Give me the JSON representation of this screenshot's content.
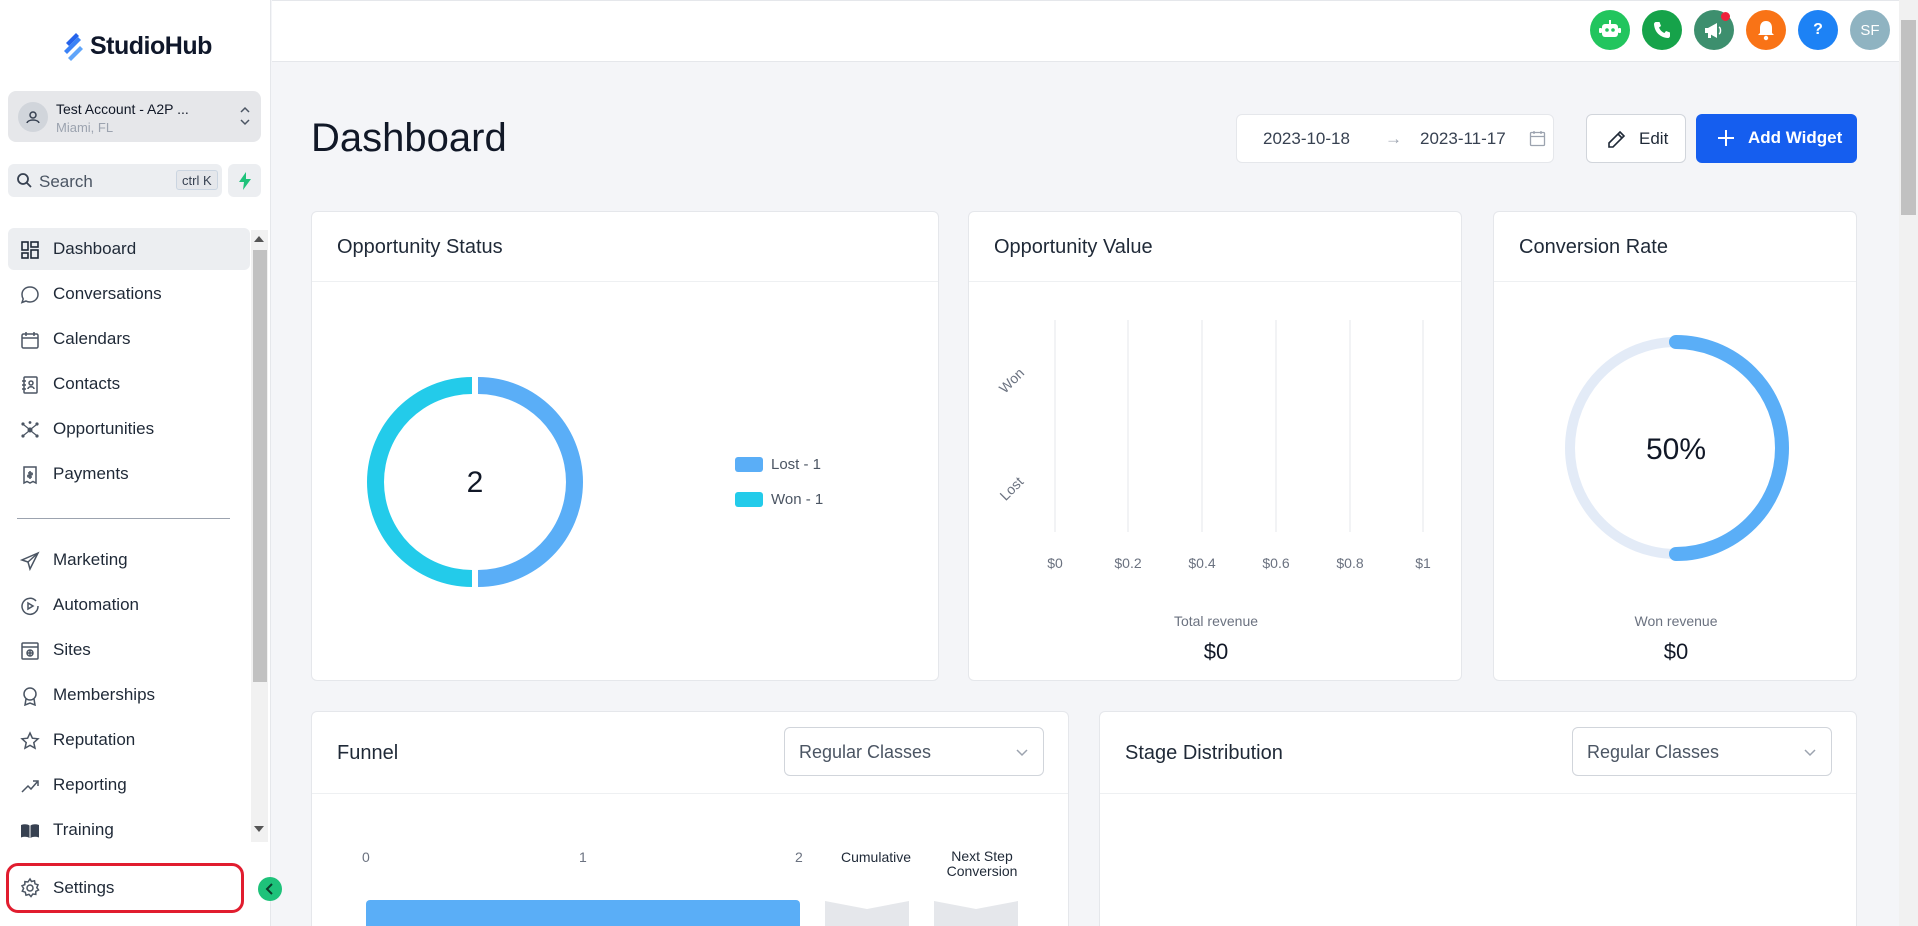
{
  "app": {
    "logo_text": "StudioHub"
  },
  "account": {
    "name": "Test Account - A2P ...",
    "location": "Miami, FL"
  },
  "search": {
    "label": "Search",
    "shortcut": "ctrl K"
  },
  "sidebar": {
    "items": [
      {
        "label": "Dashboard",
        "icon": "dashboard-icon"
      },
      {
        "label": "Conversations",
        "icon": "chat-bubble-icon"
      },
      {
        "label": "Calendars",
        "icon": "calendar-icon"
      },
      {
        "label": "Contacts",
        "icon": "contacts-book-icon"
      },
      {
        "label": "Opportunities",
        "icon": "opportunities-icon"
      },
      {
        "label": "Payments",
        "icon": "payments-icon"
      },
      {
        "label": "Marketing",
        "icon": "paper-plane-icon"
      },
      {
        "label": "Automation",
        "icon": "automation-icon"
      },
      {
        "label": "Sites",
        "icon": "sites-icon"
      },
      {
        "label": "Memberships",
        "icon": "award-icon"
      },
      {
        "label": "Reputation",
        "icon": "star-icon"
      },
      {
        "label": "Reporting",
        "icon": "trend-icon"
      },
      {
        "label": "Training",
        "icon": "book-icon"
      }
    ],
    "settings_label": "Settings"
  },
  "topbar": {
    "buttons": [
      {
        "name": "ai-bot-button",
        "color": "#22c55e"
      },
      {
        "name": "phone-button",
        "color": "#16a34a"
      },
      {
        "name": "announcements-button",
        "color": "#3d8f6e"
      },
      {
        "name": "notifications-button",
        "color": "#f97316"
      },
      {
        "name": "help-button",
        "color": "#1d82f5",
        "text": "?"
      },
      {
        "name": "user-avatar-button",
        "color": "#8fb3c1",
        "text": "SF"
      }
    ]
  },
  "page": {
    "title": "Dashboard"
  },
  "date_range": {
    "from": "2023-10-18",
    "arrow": "→",
    "to": "2023-11-17"
  },
  "actions": {
    "edit": "Edit",
    "add_widget": "Add Widget"
  },
  "colors": {
    "lost": "#5aaef7",
    "won": "#23cbea",
    "primary": "#155eef",
    "ring_bg": "#e3ebf7"
  },
  "widgets": {
    "opportunity_status": {
      "title": "Opportunity Status",
      "total": "2",
      "legend": [
        "Lost - 1",
        "Won - 1"
      ]
    },
    "opportunity_value": {
      "title": "Opportunity Value",
      "y_labels": [
        "Won",
        "Lost"
      ],
      "x_ticks": [
        "$0",
        "$0.2",
        "$0.4",
        "$0.6",
        "$0.8",
        "$1"
      ],
      "caption": "Total revenue",
      "value": "$0"
    },
    "conversion_rate": {
      "title": "Conversion Rate",
      "percent_label": "50%",
      "caption": "Won revenue",
      "value": "$0"
    },
    "funnel": {
      "title": "Funnel",
      "pipeline": "Regular Classes",
      "ticks": [
        "0",
        "1",
        "2"
      ],
      "cumulative": "Cumulative",
      "next_step_line1": "Next Step",
      "next_step_line2": "Conversion"
    },
    "stage_distribution": {
      "title": "Stage Distribution",
      "pipeline": "Regular Classes"
    }
  },
  "chart_data": [
    {
      "type": "pie",
      "title": "Opportunity Status",
      "categories": [
        "Lost",
        "Won"
      ],
      "values": [
        1,
        1
      ]
    },
    {
      "type": "bar",
      "title": "Opportunity Value",
      "categories": [
        "Won",
        "Lost"
      ],
      "values": [
        0,
        0
      ],
      "xlim": [
        0,
        1
      ]
    },
    {
      "type": "pie",
      "title": "Conversion Rate",
      "values": [
        50,
        50
      ]
    }
  ]
}
